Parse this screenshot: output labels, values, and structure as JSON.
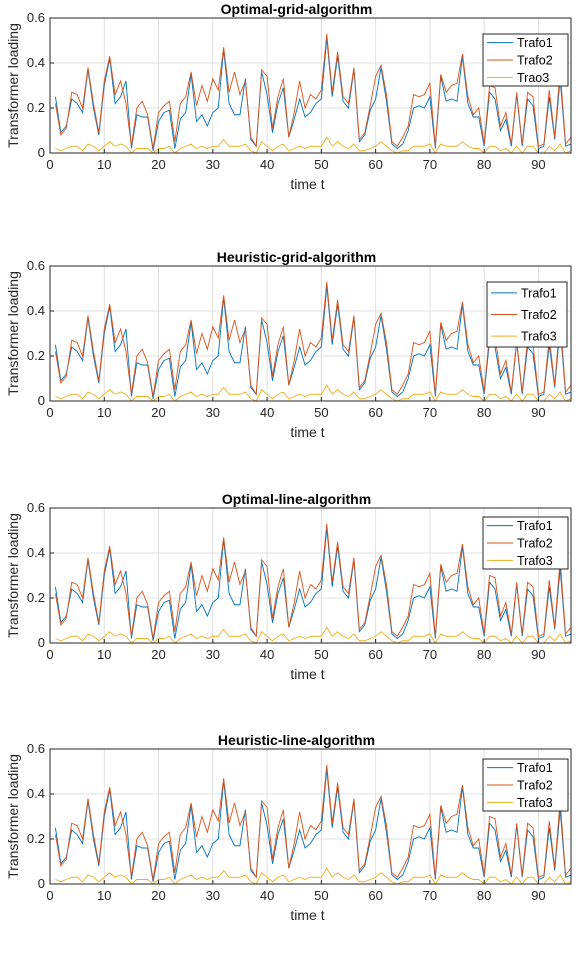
{
  "figure": {
    "colors": {
      "Trafo1": "#0072BD",
      "Trafo2": "#D95319",
      "Trafo3": "#EDB120"
    }
  },
  "chart_data": [
    {
      "type": "line",
      "title": "Optimal-grid-algorithm",
      "xlabel": "time t",
      "ylabel": "Transformer loading",
      "xlim": [
        0,
        96
      ],
      "ylim": [
        0,
        0.6
      ],
      "xticks": [
        0,
        10,
        20,
        30,
        40,
        50,
        60,
        70,
        80,
        90
      ],
      "yticks": [
        0,
        0.2,
        0.4,
        0.6
      ],
      "grid": true,
      "legend": "top-right",
      "legend_labels": [
        "Trafo1",
        "Trafo2",
        "Trao3"
      ],
      "series_ref": [
        "Trafo1",
        "Trafo2",
        "Trafo3"
      ]
    },
    {
      "type": "line",
      "title": "Heuristic-grid-algorithm",
      "xlabel": "time t",
      "ylabel": "Transformer loading",
      "xlim": [
        0,
        96
      ],
      "ylim": [
        0,
        0.6
      ],
      "xticks": [
        0,
        10,
        20,
        30,
        40,
        50,
        60,
        70,
        80,
        90
      ],
      "yticks": [
        0,
        0.2,
        0.4,
        0.6
      ],
      "grid": true,
      "legend": "top-right",
      "legend_labels": [
        "Trafo1",
        "Trafo2",
        "Trafo3"
      ],
      "series_ref": [
        "Trafo1",
        "Trafo2",
        "Trafo3"
      ]
    },
    {
      "type": "line",
      "title": "Optimal-line-algorithm",
      "xlabel": "time t",
      "ylabel": "Transformer loading",
      "xlim": [
        0,
        96
      ],
      "ylim": [
        0,
        0.6
      ],
      "xticks": [
        0,
        10,
        20,
        30,
        40,
        50,
        60,
        70,
        80,
        90
      ],
      "yticks": [
        0,
        0.2,
        0.4,
        0.6
      ],
      "grid": true,
      "legend": "top-right",
      "legend_labels": [
        "Trafo1",
        "Trafo2",
        "Trafo3"
      ],
      "series_ref": [
        "Trafo1",
        "Trafo2",
        "Trafo3"
      ]
    },
    {
      "type": "line",
      "title": "Heuristic-line-algorithm",
      "xlabel": "time t",
      "ylabel": "Transformer loading",
      "xlim": [
        0,
        96
      ],
      "ylim": [
        0,
        0.6
      ],
      "xticks": [
        0,
        10,
        20,
        30,
        40,
        50,
        60,
        70,
        80,
        90
      ],
      "yticks": [
        0,
        0.2,
        0.4,
        0.6
      ],
      "grid": true,
      "legend": "top-right",
      "legend_labels": [
        "Trafo1",
        "Trafo2",
        "Trafo3"
      ],
      "series_ref": [
        "Trafo1",
        "Trafo2",
        "Trafo3"
      ]
    }
  ],
  "series_values": {
    "x": [
      1,
      2,
      3,
      4,
      5,
      6,
      7,
      8,
      9,
      10,
      11,
      12,
      13,
      14,
      15,
      16,
      17,
      18,
      19,
      20,
      21,
      22,
      23,
      24,
      25,
      26,
      27,
      28,
      29,
      30,
      31,
      32,
      33,
      34,
      35,
      36,
      37,
      38,
      39,
      40,
      41,
      42,
      43,
      44,
      45,
      46,
      47,
      48,
      49,
      50,
      51,
      52,
      53,
      54,
      55,
      56,
      57,
      58,
      59,
      60,
      61,
      62,
      63,
      64,
      65,
      66,
      67,
      68,
      69,
      70,
      71,
      72,
      73,
      74,
      75,
      76,
      77,
      78,
      79,
      80,
      81,
      82,
      83,
      84,
      85,
      86,
      87,
      88,
      89,
      90,
      91,
      92,
      93,
      94,
      95,
      96
    ],
    "Trafo1": [
      0.25,
      0.09,
      0.12,
      0.24,
      0.22,
      0.18,
      0.37,
      0.2,
      0.08,
      0.3,
      0.42,
      0.22,
      0.25,
      0.32,
      0.02,
      0.17,
      0.16,
      0.16,
      0.01,
      0.14,
      0.18,
      0.19,
      0.02,
      0.15,
      0.18,
      0.35,
      0.14,
      0.17,
      0.12,
      0.18,
      0.2,
      0.46,
      0.22,
      0.17,
      0.17,
      0.33,
      0.06,
      0.03,
      0.36,
      0.26,
      0.09,
      0.22,
      0.29,
      0.07,
      0.15,
      0.24,
      0.16,
      0.18,
      0.22,
      0.24,
      0.51,
      0.25,
      0.43,
      0.23,
      0.2,
      0.37,
      0.05,
      0.08,
      0.19,
      0.24,
      0.38,
      0.23,
      0.04,
      0.02,
      0.04,
      0.1,
      0.2,
      0.21,
      0.2,
      0.25,
      0.02,
      0.34,
      0.23,
      0.24,
      0.23,
      0.43,
      0.22,
      0.16,
      0.16,
      0.03,
      0.27,
      0.24,
      0.1,
      0.15,
      0.03,
      0.26,
      0.03,
      0.24,
      0.21,
      0.02,
      0.03,
      0.25,
      0.06,
      0.33,
      0.03,
      0.04
    ],
    "Trafo2": [
      0.22,
      0.08,
      0.11,
      0.27,
      0.26,
      0.2,
      0.38,
      0.22,
      0.09,
      0.32,
      0.43,
      0.26,
      0.32,
      0.22,
      0.03,
      0.2,
      0.23,
      0.17,
      0.02,
      0.18,
      0.21,
      0.23,
      0.05,
      0.22,
      0.25,
      0.36,
      0.21,
      0.3,
      0.23,
      0.33,
      0.28,
      0.47,
      0.27,
      0.36,
      0.26,
      0.32,
      0.07,
      0.03,
      0.37,
      0.34,
      0.11,
      0.25,
      0.33,
      0.07,
      0.18,
      0.32,
      0.2,
      0.26,
      0.24,
      0.28,
      0.53,
      0.27,
      0.45,
      0.25,
      0.22,
      0.38,
      0.06,
      0.09,
      0.21,
      0.34,
      0.39,
      0.26,
      0.05,
      0.03,
      0.07,
      0.12,
      0.26,
      0.25,
      0.26,
      0.31,
      0.03,
      0.35,
      0.27,
      0.3,
      0.31,
      0.44,
      0.25,
      0.17,
      0.2,
      0.04,
      0.3,
      0.29,
      0.12,
      0.18,
      0.04,
      0.27,
      0.04,
      0.27,
      0.25,
      0.03,
      0.04,
      0.28,
      0.07,
      0.37,
      0.04,
      0.07
    ],
    "Trafo3": [
      0.02,
      0.01,
      0.02,
      0.03,
      0.03,
      0.01,
      0.04,
      0.03,
      0.01,
      0.03,
      0.05,
      0.03,
      0.04,
      0.03,
      0.0,
      0.02,
      0.02,
      0.02,
      0.0,
      0.02,
      0.02,
      0.03,
      0.0,
      0.02,
      0.03,
      0.04,
      0.02,
      0.03,
      0.02,
      0.03,
      0.03,
      0.06,
      0.03,
      0.03,
      0.03,
      0.04,
      0.01,
      0.0,
      0.05,
      0.03,
      0.01,
      0.03,
      0.04,
      0.01,
      0.02,
      0.03,
      0.02,
      0.03,
      0.03,
      0.03,
      0.07,
      0.03,
      0.05,
      0.03,
      0.02,
      0.04,
      0.01,
      0.01,
      0.02,
      0.03,
      0.05,
      0.03,
      0.01,
      0.0,
      0.01,
      0.01,
      0.03,
      0.03,
      0.03,
      0.04,
      0.0,
      0.04,
      0.03,
      0.03,
      0.03,
      0.05,
      0.03,
      0.02,
      0.02,
      0.0,
      0.03,
      0.03,
      0.01,
      0.02,
      0.0,
      0.03,
      0.0,
      0.03,
      0.03,
      0.0,
      0.0,
      0.03,
      0.01,
      0.04,
      0.0,
      0.01
    ]
  }
}
